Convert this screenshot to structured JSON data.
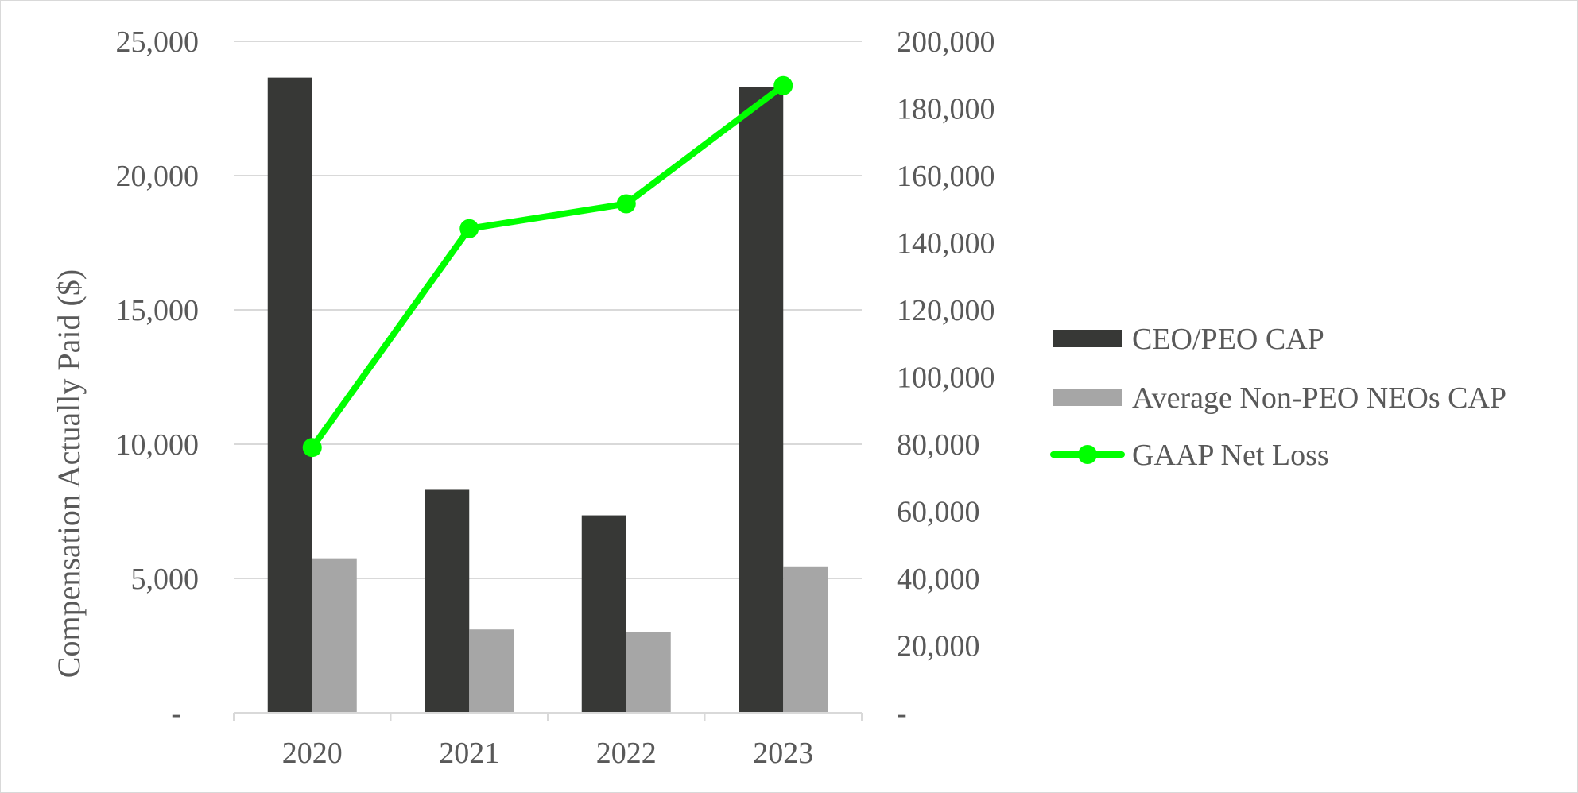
{
  "chart_data": {
    "type": "bar",
    "categories": [
      "2020",
      "2021",
      "2022",
      "2023"
    ],
    "series": [
      {
        "name": "CEO/PEO CAP",
        "type": "bar",
        "axis": "left",
        "values": [
          23650,
          8300,
          7350,
          23300
        ],
        "color": "#373836"
      },
      {
        "name": "Average Non-PEO NEOs CAP",
        "type": "bar",
        "axis": "left",
        "values": [
          5750,
          3100,
          3000,
          5450
        ],
        "color": "#a6a6a6"
      },
      {
        "name": "GAAP Net Loss",
        "type": "line",
        "axis": "right",
        "values": [
          79000,
          144200,
          151600,
          186800
        ],
        "color": "#00ff00",
        "marker": "circle"
      }
    ],
    "ylabel": "Compensation Actually Paid ($)",
    "ylim": [
      0,
      25000
    ],
    "yticks": [
      "-",
      "5,000",
      "10,000",
      "15,000",
      "20,000",
      "25,000"
    ],
    "y2lim": [
      0,
      200000
    ],
    "y2ticks": [
      "-",
      "20,000",
      "40,000",
      "60,000",
      "80,000",
      "100,000",
      "120,000",
      "140,000",
      "160,000",
      "180,000",
      "200,000"
    ],
    "grid": true,
    "legend_position": "right",
    "colors": {
      "gridline": "#d9d9d9",
      "axis": "#d9d9d9",
      "text": "#595959"
    }
  }
}
